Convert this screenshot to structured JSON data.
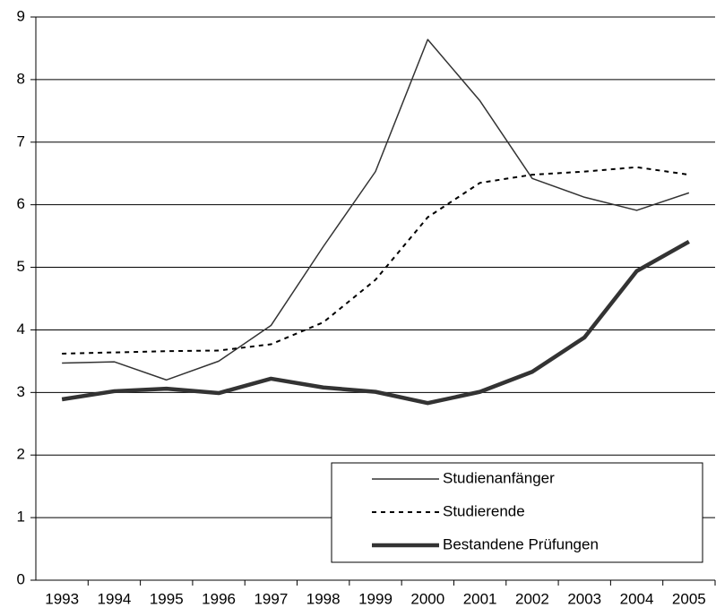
{
  "chart_data": {
    "type": "line",
    "categories": [
      "1993",
      "1994",
      "1995",
      "1996",
      "1997",
      "1998",
      "1999",
      "2000",
      "2001",
      "2002",
      "2003",
      "2004",
      "2005"
    ],
    "series": [
      {
        "name": "Studienanfänger",
        "color": "#333333",
        "width": 1.5,
        "dash": false,
        "values": [
          3.47,
          3.49,
          3.2,
          3.5,
          4.07,
          5.33,
          6.53,
          8.64,
          7.66,
          6.42,
          6.12,
          5.91,
          6.19
        ]
      },
      {
        "name": "Studierende",
        "color": "#000000",
        "width": 2,
        "dash": true,
        "values": [
          3.62,
          3.64,
          3.66,
          3.67,
          3.77,
          4.12,
          4.8,
          5.8,
          6.35,
          6.48,
          6.53,
          6.6,
          6.48
        ]
      },
      {
        "name": "Bestandene Prüfungen",
        "color": "#333333",
        "width": 4.5,
        "dash": false,
        "values": [
          2.89,
          3.02,
          3.06,
          2.99,
          3.22,
          3.08,
          3.01,
          2.83,
          3.01,
          3.33,
          3.88,
          4.94,
          5.41
        ]
      }
    ],
    "ylim": [
      0,
      9
    ],
    "yticks": [
      0,
      1,
      2,
      3,
      4,
      5,
      6,
      7,
      8,
      9
    ],
    "grid": true,
    "legend": "lower right"
  }
}
